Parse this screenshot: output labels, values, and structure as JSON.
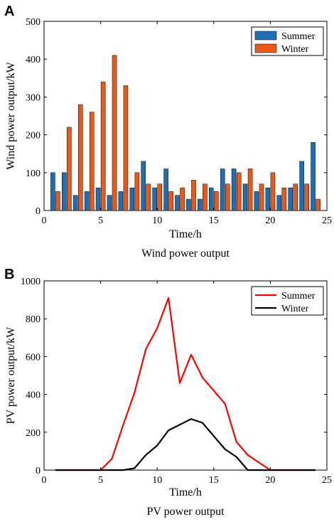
{
  "chart_data": [
    {
      "panel": "A",
      "type": "bar",
      "xlabel": "Time/h",
      "ylabel": "Wind power output/kW",
      "caption": "Wind power output",
      "xlim": [
        0,
        25
      ],
      "ylim": [
        0,
        500
      ],
      "xticks": [
        0,
        5,
        10,
        15,
        20,
        25
      ],
      "yticks": [
        0,
        100,
        200,
        300,
        400,
        500
      ],
      "legend_position": "top-right",
      "x": [
        1,
        2,
        3,
        4,
        5,
        6,
        7,
        8,
        9,
        10,
        11,
        12,
        13,
        14,
        15,
        16,
        17,
        18,
        19,
        20,
        21,
        22,
        23,
        24
      ],
      "series": [
        {
          "name": "Summer",
          "color": "#1f6db3",
          "values": [
            100,
            100,
            40,
            50,
            60,
            40,
            50,
            60,
            130,
            60,
            110,
            40,
            30,
            30,
            60,
            110,
            110,
            70,
            50,
            60,
            40,
            60,
            130,
            180
          ]
        },
        {
          "name": "Winter",
          "color": "#e8591a",
          "values": [
            50,
            220,
            280,
            260,
            340,
            410,
            330,
            100,
            70,
            70,
            50,
            60,
            80,
            70,
            50,
            70,
            100,
            110,
            70,
            100,
            60,
            70,
            70,
            30
          ]
        }
      ]
    },
    {
      "panel": "B",
      "type": "line",
      "xlabel": "Time/h",
      "ylabel": "PV power output/kW",
      "caption": "PV power output",
      "xlim": [
        0,
        25
      ],
      "ylim": [
        0,
        1000
      ],
      "xticks": [
        0,
        5,
        10,
        15,
        20,
        25
      ],
      "yticks": [
        0,
        200,
        400,
        600,
        800,
        1000
      ],
      "legend_position": "top-right",
      "x": [
        1,
        2,
        3,
        4,
        5,
        6,
        7,
        8,
        9,
        10,
        11,
        12,
        13,
        14,
        15,
        16,
        17,
        18,
        19,
        20,
        21,
        22,
        23,
        24
      ],
      "series": [
        {
          "name": "Summer",
          "color": "#ff0000",
          "values": [
            0,
            0,
            0,
            0,
            0,
            60,
            240,
            410,
            640,
            750,
            910,
            460,
            610,
            490,
            420,
            350,
            150,
            80,
            40,
            0,
            0,
            0,
            0,
            0
          ]
        },
        {
          "name": "Winter",
          "color": "#000000",
          "values": [
            0,
            0,
            0,
            0,
            0,
            0,
            0,
            10,
            80,
            130,
            210,
            240,
            270,
            250,
            180,
            110,
            70,
            0,
            0,
            0,
            0,
            0,
            0,
            0
          ]
        }
      ]
    }
  ]
}
